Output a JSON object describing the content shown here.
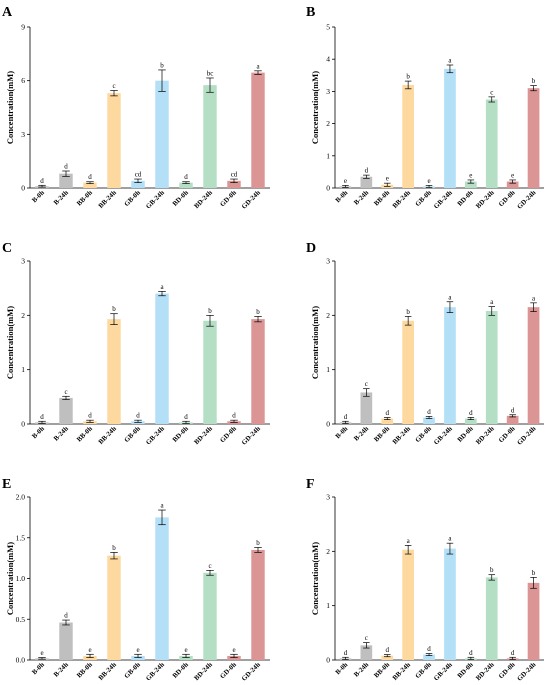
{
  "chart_data": [
    {
      "type": "bar",
      "panel_label": "A",
      "ylabel": "Concentration(mM)",
      "ylim": [
        0,
        9
      ],
      "yticks": [
        0,
        3,
        6,
        9
      ],
      "categories": [
        "B-0h",
        "B-24h",
        "BB-0h",
        "BB-24h",
        "GB-0h",
        "GB-24h",
        "BD-0h",
        "BD-24h",
        "GD-0h",
        "GD-24h"
      ],
      "values": [
        0.1,
        0.8,
        0.3,
        5.3,
        0.4,
        6.0,
        0.3,
        5.75,
        0.4,
        6.45
      ],
      "errors": [
        0.05,
        0.15,
        0.05,
        0.15,
        0.1,
        0.6,
        0.05,
        0.4,
        0.1,
        0.1
      ],
      "letters": [
        "d",
        "d",
        "d",
        "c",
        "cd",
        "b",
        "d",
        "bc",
        "cd",
        "a"
      ]
    },
    {
      "type": "bar",
      "panel_label": "B",
      "ylabel": "Concentration(mM)",
      "ylim": [
        0,
        5
      ],
      "yticks": [
        0,
        1,
        2,
        3,
        4,
        5
      ],
      "categories": [
        "B-0h",
        "B-24h",
        "BB-0h",
        "BB-24h",
        "GB-0h",
        "GB-24h",
        "BD-0h",
        "BD-24h",
        "GD-0h",
        "GD-24h"
      ],
      "values": [
        0.05,
        0.35,
        0.1,
        3.2,
        0.05,
        3.7,
        0.2,
        2.75,
        0.2,
        3.1
      ],
      "errors": [
        0.03,
        0.05,
        0.05,
        0.12,
        0.03,
        0.12,
        0.05,
        0.08,
        0.05,
        0.08
      ],
      "letters": [
        "e",
        "d",
        "e",
        "b",
        "e",
        "a",
        "e",
        "c",
        "e",
        "b"
      ]
    },
    {
      "type": "bar",
      "panel_label": "C",
      "ylabel": "Concentration(mM)",
      "ylim": [
        0,
        3
      ],
      "yticks": [
        0,
        1,
        2,
        3
      ],
      "categories": [
        "B-0h",
        "B-24h",
        "BB-0h",
        "BB-24h",
        "GB-0h",
        "GB-24h",
        "BD-0h",
        "BD-24h",
        "GD-0h",
        "GD-24h"
      ],
      "values": [
        0.03,
        0.48,
        0.05,
        1.93,
        0.05,
        2.4,
        0.03,
        1.9,
        0.05,
        1.93
      ],
      "errors": [
        0.02,
        0.03,
        0.02,
        0.1,
        0.02,
        0.04,
        0.02,
        0.1,
        0.02,
        0.05
      ],
      "letters": [
        "d",
        "c",
        "d",
        "b",
        "d",
        "a",
        "d",
        "b",
        "d",
        "b"
      ]
    },
    {
      "type": "bar",
      "panel_label": "D",
      "ylabel": "Concentration(mM)",
      "ylim": [
        0,
        3
      ],
      "yticks": [
        0,
        1,
        2,
        3
      ],
      "categories": [
        "B-0h",
        "B-24h",
        "BB-0h",
        "BB-24h",
        "GB-0h",
        "GB-24h",
        "BD-0h",
        "BD-24h",
        "GD-0h",
        "GD-24h"
      ],
      "values": [
        0.03,
        0.58,
        0.1,
        1.9,
        0.12,
        2.15,
        0.1,
        2.08,
        0.15,
        2.15
      ],
      "errors": [
        0.02,
        0.07,
        0.02,
        0.08,
        0.02,
        0.1,
        0.02,
        0.08,
        0.02,
        0.08
      ],
      "letters": [
        "d",
        "c",
        "d",
        "b",
        "d",
        "a",
        "d",
        "a",
        "d",
        "a"
      ]
    },
    {
      "type": "bar",
      "panel_label": "E",
      "ylabel": "Concentration(mM)",
      "ylim": [
        0,
        2.0
      ],
      "yticks": [
        0.0,
        0.5,
        1.0,
        1.5,
        2.0
      ],
      "ytick_labels": [
        "0.0",
        "0.5",
        "1.0",
        "1.5",
        "2.0"
      ],
      "categories": [
        "B-0h",
        "B-24h",
        "BB-0h",
        "BB-24h",
        "GB-0h",
        "GB-24h",
        "BD-0h",
        "BD-24h",
        "GD-0h",
        "GD-24h"
      ],
      "values": [
        0.02,
        0.46,
        0.05,
        1.28,
        0.05,
        1.75,
        0.05,
        1.07,
        0.05,
        1.35
      ],
      "errors": [
        0.01,
        0.03,
        0.02,
        0.04,
        0.02,
        0.09,
        0.02,
        0.03,
        0.02,
        0.03
      ],
      "letters": [
        "e",
        "d",
        "e",
        "b",
        "e",
        "a",
        "e",
        "c",
        "e",
        "b"
      ]
    },
    {
      "type": "bar",
      "panel_label": "F",
      "ylabel": "Concentration(mM)",
      "ylim": [
        0,
        3
      ],
      "yticks": [
        0,
        1,
        2,
        3
      ],
      "categories": [
        "B-0h",
        "B-24h",
        "BB-0h",
        "BB-24h",
        "GB-0h",
        "GB-24h",
        "BD-0h",
        "BD-24h",
        "GD-0h",
        "GD-24h"
      ],
      "values": [
        0.03,
        0.27,
        0.08,
        2.03,
        0.1,
        2.05,
        0.03,
        1.52,
        0.03,
        1.42
      ],
      "errors": [
        0.02,
        0.05,
        0.02,
        0.08,
        0.02,
        0.1,
        0.02,
        0.05,
        0.02,
        0.1
      ],
      "letters": [
        "d",
        "c",
        "d",
        "a",
        "d",
        "a",
        "d",
        "b",
        "d",
        "b"
      ]
    }
  ],
  "colors": {
    "B": "#bfbfbf",
    "BB": "#fdd9a0",
    "GB": "#b3e0f7",
    "BD": "#b5dfc5",
    "GD": "#dc9595",
    "error_bar": "#000000",
    "axis": "#000000"
  }
}
